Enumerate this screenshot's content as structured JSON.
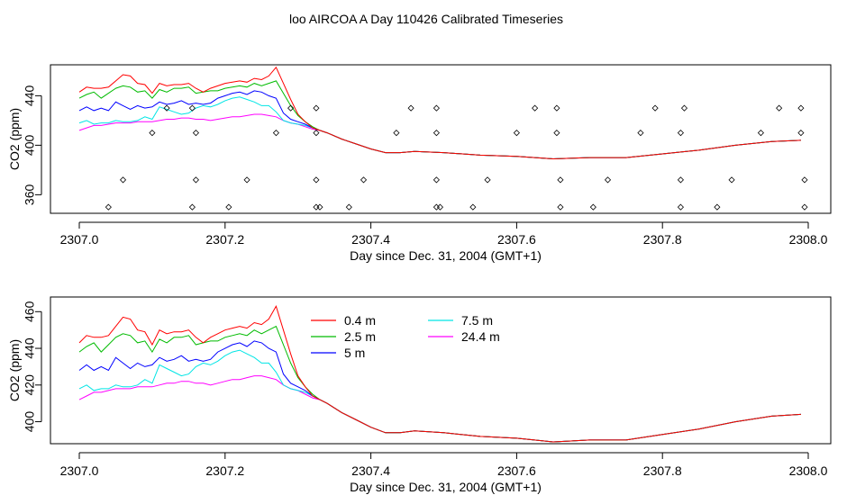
{
  "figure": {
    "title": "loo AIRCOA A  Day 110426  Calibrated Timeseries"
  },
  "colors": {
    "0.4 m": "#ff0000",
    "2.5 m": "#00bb00",
    "5 m": "#0000ff",
    "7.5 m": "#00e5e5",
    "24.4 m": "#ff00ff",
    "markers": "#000000"
  },
  "chart_data": [
    {
      "type": "line",
      "title": "",
      "xlabel": "Day since Dec. 31, 2004 (GMT+1)",
      "ylabel": "CO2 (ppm)",
      "xlim": [
        2307.0,
        2308.0
      ],
      "ylim": [
        345,
        465
      ],
      "xticks": [
        "2307.0",
        "2307.2",
        "2307.4",
        "2307.6",
        "2307.8",
        "2308.0"
      ],
      "yticks": [
        "360",
        "400",
        "440"
      ],
      "grid": false,
      "legend": "none",
      "x": [
        2307.0,
        2307.01,
        2307.02,
        2307.03,
        2307.04,
        2307.05,
        2307.06,
        2307.07,
        2307.08,
        2307.09,
        2307.1,
        2307.11,
        2307.12,
        2307.13,
        2307.14,
        2307.15,
        2307.16,
        2307.17,
        2307.18,
        2307.19,
        2307.2,
        2307.21,
        2307.22,
        2307.23,
        2307.24,
        2307.25,
        2307.26,
        2307.27,
        2307.28,
        2307.29,
        2307.3,
        2307.31,
        2307.32,
        2307.33,
        2307.34,
        2307.36,
        2307.38,
        2307.4,
        2307.42,
        2307.44,
        2307.46,
        2307.5,
        2307.55,
        2307.6,
        2307.65,
        2307.7,
        2307.75,
        2307.8,
        2307.85,
        2307.9,
        2307.95,
        2307.99
      ],
      "series": [
        {
          "name": "0.4 m",
          "values": [
            443,
            447,
            446,
            446,
            447,
            452,
            457,
            456,
            450,
            449,
            442,
            450,
            448,
            449,
            449,
            450,
            446,
            443,
            446,
            448,
            450,
            451,
            452,
            451,
            454,
            453,
            456,
            463,
            450,
            437,
            425,
            419,
            414,
            412,
            410,
            405,
            401,
            397,
            394,
            394,
            395,
            394,
            392,
            391,
            389,
            390,
            390,
            393,
            396,
            400,
            403,
            404
          ]
        },
        {
          "name": "2.5 m",
          "values": [
            438,
            441,
            443,
            438,
            442,
            446,
            448,
            447,
            443,
            444,
            438,
            445,
            443,
            446,
            446,
            447,
            442,
            443,
            444,
            444,
            446,
            447,
            448,
            447,
            450,
            448,
            450,
            452,
            442,
            432,
            424,
            419,
            415,
            412,
            410,
            405,
            401,
            397,
            394,
            394,
            395,
            394,
            392,
            391,
            389,
            390,
            390,
            393,
            396,
            400,
            403,
            404
          ]
        },
        {
          "name": "5 m",
          "values": [
            428,
            431,
            428,
            430,
            428,
            435,
            432,
            429,
            432,
            430,
            431,
            435,
            433,
            434,
            436,
            433,
            434,
            433,
            434,
            438,
            440,
            442,
            443,
            441,
            444,
            443,
            440,
            438,
            426,
            421,
            419,
            417,
            414,
            412,
            410,
            405,
            401,
            397,
            394,
            394,
            395,
            394,
            392,
            391,
            389,
            390,
            390,
            393,
            396,
            400,
            403,
            404
          ]
        },
        {
          "name": "7.5 m",
          "values": [
            418,
            420,
            417,
            418,
            418,
            420,
            419,
            419,
            420,
            423,
            421,
            431,
            429,
            427,
            425,
            426,
            430,
            432,
            431,
            433,
            436,
            438,
            439,
            437,
            435,
            432,
            432,
            427,
            420,
            418,
            417,
            416,
            414,
            412,
            410,
            405,
            401,
            397,
            394,
            394,
            395,
            394,
            392,
            391,
            389,
            390,
            390,
            393,
            396,
            400,
            403,
            404
          ]
        },
        {
          "name": "24.4 m",
          "values": [
            412,
            414,
            416,
            416,
            417,
            418,
            418,
            418,
            419,
            419,
            419,
            420,
            421,
            421,
            422,
            422,
            421,
            421,
            420,
            421,
            422,
            423,
            423,
            424,
            425,
            425,
            424,
            423,
            420,
            418,
            417,
            415,
            413,
            412,
            410,
            405,
            401,
            397,
            394,
            394,
            395,
            394,
            392,
            391,
            389,
            390,
            390,
            393,
            396,
            400,
            403,
            404
          ]
        }
      ],
      "markers": {
        "x": [
          2307.04,
          2307.06,
          2307.1,
          2307.12,
          2307.155,
          2307.16,
          2307.16,
          2307.155,
          2307.205,
          2307.23,
          2307.27,
          2307.29,
          2307.325,
          2307.325,
          2307.325,
          2307.325,
          2307.33,
          2307.37,
          2307.39,
          2307.435,
          2307.455,
          2307.49,
          2307.49,
          2307.49,
          2307.49,
          2307.495,
          2307.54,
          2307.56,
          2307.6,
          2307.625,
          2307.655,
          2307.655,
          2307.66,
          2307.66,
          2307.705,
          2307.725,
          2307.77,
          2307.79,
          2307.825,
          2307.825,
          2307.825,
          2307.83,
          2307.875,
          2307.895,
          2307.935,
          2307.96,
          2307.99,
          2307.99,
          2307.995,
          2307.995
        ],
        "y": [
          350,
          372,
          410,
          430,
          350,
          372,
          410,
          430,
          350,
          372,
          410,
          430,
          350,
          372,
          410,
          430,
          350,
          350,
          372,
          410,
          430,
          350,
          372,
          410,
          430,
          350,
          350,
          372,
          410,
          430,
          410,
          430,
          372,
          350,
          350,
          372,
          410,
          430,
          350,
          372,
          410,
          430,
          350,
          372,
          410,
          430,
          410,
          430,
          372,
          350
        ]
      }
    },
    {
      "type": "line",
      "title": "",
      "xlabel": "Day since Dec. 31, 2004 (GMT+1)",
      "ylabel": "CO2 (ppm)",
      "xlim": [
        2307.0,
        2308.0
      ],
      "ylim": [
        388,
        468
      ],
      "xticks": [
        "2307.0",
        "2307.2",
        "2307.4",
        "2307.6",
        "2307.8",
        "2308.0"
      ],
      "yticks": [
        "400",
        "420",
        "440",
        "460"
      ],
      "grid": false,
      "legend": "top-center",
      "legend_entries": [
        "0.4 m",
        "2.5 m",
        "5 m",
        "7.5 m",
        "24.4 m"
      ],
      "x": [
        2307.0,
        2307.01,
        2307.02,
        2307.03,
        2307.04,
        2307.05,
        2307.06,
        2307.07,
        2307.08,
        2307.09,
        2307.1,
        2307.11,
        2307.12,
        2307.13,
        2307.14,
        2307.15,
        2307.16,
        2307.17,
        2307.18,
        2307.19,
        2307.2,
        2307.21,
        2307.22,
        2307.23,
        2307.24,
        2307.25,
        2307.26,
        2307.27,
        2307.28,
        2307.29,
        2307.3,
        2307.31,
        2307.32,
        2307.33,
        2307.34,
        2307.36,
        2307.38,
        2307.4,
        2307.42,
        2307.44,
        2307.46,
        2307.5,
        2307.55,
        2307.6,
        2307.65,
        2307.7,
        2307.75,
        2307.8,
        2307.85,
        2307.9,
        2307.95,
        2307.99
      ],
      "series": [
        {
          "name": "0.4 m",
          "values": [
            443,
            447,
            446,
            446,
            447,
            452,
            457,
            456,
            450,
            449,
            442,
            450,
            448,
            449,
            449,
            450,
            446,
            443,
            446,
            448,
            450,
            451,
            452,
            451,
            454,
            453,
            456,
            463,
            450,
            437,
            425,
            419,
            414,
            412,
            410,
            405,
            401,
            397,
            394,
            394,
            395,
            394,
            392,
            391,
            389,
            390,
            390,
            393,
            396,
            400,
            403,
            404
          ]
        },
        {
          "name": "2.5 m",
          "values": [
            438,
            441,
            443,
            438,
            442,
            446,
            448,
            447,
            443,
            444,
            438,
            445,
            443,
            446,
            446,
            447,
            442,
            443,
            444,
            444,
            446,
            447,
            448,
            447,
            450,
            448,
            450,
            452,
            442,
            432,
            424,
            419,
            415,
            412,
            410,
            405,
            401,
            397,
            394,
            394,
            395,
            394,
            392,
            391,
            389,
            390,
            390,
            393,
            396,
            400,
            403,
            404
          ]
        },
        {
          "name": "5 m",
          "values": [
            428,
            431,
            428,
            430,
            428,
            435,
            432,
            429,
            432,
            430,
            431,
            435,
            433,
            434,
            436,
            433,
            434,
            433,
            434,
            438,
            440,
            442,
            443,
            441,
            444,
            443,
            440,
            438,
            426,
            421,
            419,
            417,
            414,
            412,
            410,
            405,
            401,
            397,
            394,
            394,
            395,
            394,
            392,
            391,
            389,
            390,
            390,
            393,
            396,
            400,
            403,
            404
          ]
        },
        {
          "name": "7.5 m",
          "values": [
            418,
            420,
            417,
            418,
            418,
            420,
            419,
            419,
            420,
            423,
            421,
            431,
            429,
            427,
            425,
            426,
            430,
            432,
            431,
            433,
            436,
            438,
            439,
            437,
            435,
            432,
            432,
            427,
            420,
            418,
            417,
            416,
            414,
            412,
            410,
            405,
            401,
            397,
            394,
            394,
            395,
            394,
            392,
            391,
            389,
            390,
            390,
            393,
            396,
            400,
            403,
            404
          ]
        },
        {
          "name": "24.4 m",
          "values": [
            412,
            414,
            416,
            416,
            417,
            418,
            418,
            418,
            419,
            419,
            419,
            420,
            421,
            421,
            422,
            422,
            421,
            421,
            420,
            421,
            422,
            423,
            423,
            424,
            425,
            425,
            424,
            423,
            420,
            418,
            417,
            415,
            413,
            412,
            410,
            405,
            401,
            397,
            394,
            394,
            395,
            394,
            392,
            391,
            389,
            390,
            390,
            393,
            396,
            400,
            403,
            404
          ]
        }
      ]
    }
  ]
}
